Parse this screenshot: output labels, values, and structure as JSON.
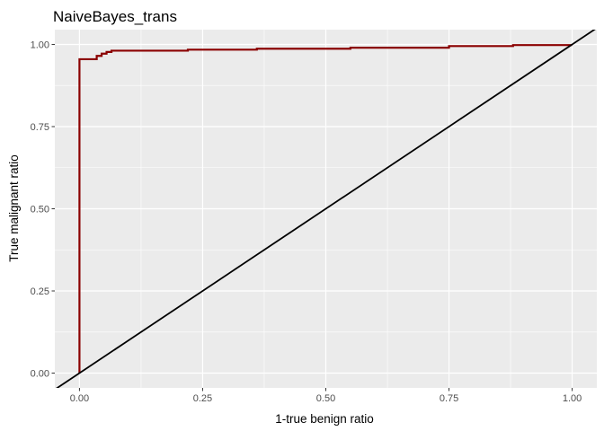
{
  "chart_data": {
    "type": "line",
    "title": "NaiveBayes_trans",
    "xlabel": "1-true benign ratio",
    "ylabel": "True malignant ratio",
    "xlim": [
      -0.05,
      1.05
    ],
    "ylim": [
      -0.045,
      1.045
    ],
    "x_ticks": [
      0.0,
      0.25,
      0.5,
      0.75,
      1.0
    ],
    "y_ticks": [
      0.0,
      0.25,
      0.5,
      0.75,
      1.0
    ],
    "x_tick_labels": [
      "0.00",
      "0.25",
      "0.50",
      "0.75",
      "1.00"
    ],
    "y_tick_labels": [
      "0.00",
      "0.25",
      "0.50",
      "0.75",
      "1.00"
    ],
    "grid": true,
    "legend": "none",
    "series": [
      {
        "color": "#8b0000",
        "step": true,
        "x": [
          0.0,
          0.0,
          0.0,
          0.035,
          0.035,
          0.045,
          0.045,
          0.055,
          0.055,
          0.065,
          0.065,
          0.22,
          0.22,
          0.36,
          0.36,
          0.55,
          0.55,
          0.75,
          0.75,
          0.88,
          0.88,
          1.0
        ],
        "y": [
          0.0,
          0.0,
          0.955,
          0.955,
          0.965,
          0.965,
          0.972,
          0.972,
          0.977,
          0.977,
          0.981,
          0.981,
          0.984,
          0.984,
          0.987,
          0.987,
          0.99,
          0.99,
          0.995,
          0.995,
          0.998,
          0.998
        ]
      },
      {
        "color": "#000000",
        "step": false,
        "x": [
          -0.05,
          1.05
        ],
        "y": [
          -0.05,
          1.05
        ]
      }
    ]
  }
}
